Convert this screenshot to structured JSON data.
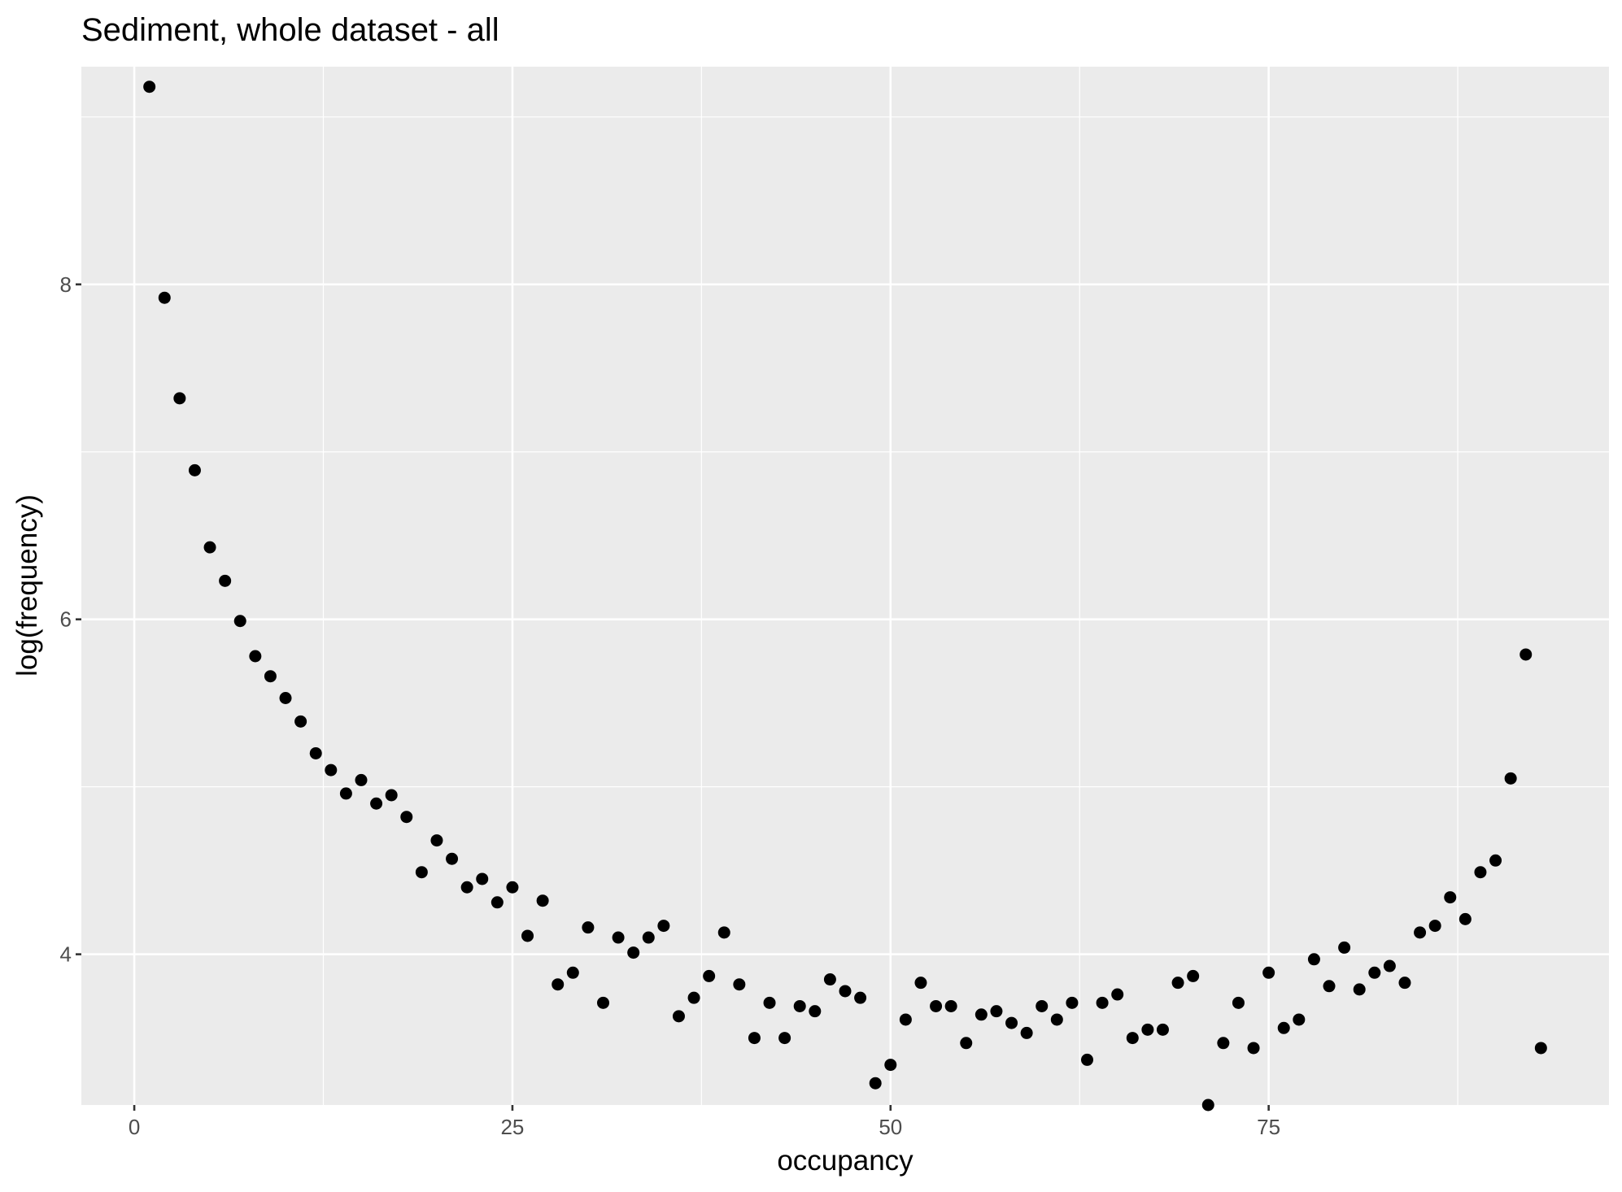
{
  "chart_data": {
    "type": "scatter",
    "title": "Sediment, whole dataset - all",
    "xlabel": "occupancy",
    "ylabel": "log(frequency)",
    "xlim": [
      -3.5,
      97.5
    ],
    "ylim": [
      3.1,
      9.3
    ],
    "xticks": [
      0,
      25,
      50,
      75
    ],
    "xtick_labels": [
      "0",
      "25",
      "50",
      "75"
    ],
    "yticks": [
      4,
      6,
      8
    ],
    "ytick_labels": [
      "4",
      "6",
      "8"
    ],
    "grid": true,
    "legend": "none",
    "colors": {
      "panel": "#ebebeb",
      "grid": "#ffffff",
      "point": "#000000",
      "tick_text": "#4d4d4d"
    },
    "x": [
      1,
      2,
      3,
      4,
      5,
      6,
      7,
      8,
      9,
      10,
      11,
      12,
      13,
      14,
      15,
      16,
      17,
      18,
      19,
      20,
      21,
      22,
      23,
      24,
      25,
      26,
      27,
      28,
      29,
      30,
      31,
      32,
      33,
      34,
      35,
      36,
      37,
      38,
      39,
      40,
      41,
      42,
      43,
      44,
      45,
      46,
      47,
      48,
      49,
      50,
      51,
      52,
      53,
      54,
      55,
      56,
      57,
      58,
      59,
      60,
      61,
      62,
      63,
      64,
      65,
      66,
      67,
      68,
      69,
      70,
      71,
      72,
      73,
      74,
      75,
      76,
      77,
      78,
      79,
      80,
      81,
      82,
      83,
      84,
      85,
      86,
      87,
      88,
      89,
      90,
      91,
      92,
      93
    ],
    "y": [
      9.18,
      7.92,
      7.32,
      6.89,
      6.43,
      6.23,
      5.99,
      5.78,
      5.66,
      5.53,
      5.39,
      5.2,
      5.1,
      4.96,
      5.04,
      4.9,
      4.95,
      4.82,
      4.49,
      4.68,
      4.57,
      4.4,
      4.45,
      4.31,
      4.4,
      4.11,
      4.32,
      3.82,
      3.89,
      4.16,
      3.71,
      4.1,
      4.01,
      4.1,
      4.17,
      3.63,
      3.74,
      3.87,
      4.13,
      3.82,
      3.5,
      3.71,
      3.5,
      3.69,
      3.66,
      3.85,
      3.78,
      3.74,
      3.23,
      3.34,
      3.61,
      3.83,
      3.69,
      3.69,
      3.47,
      3.64,
      3.66,
      3.59,
      3.53,
      3.69,
      3.61,
      3.71,
      3.37,
      3.71,
      3.76,
      3.5,
      3.55,
      3.55,
      3.83,
      3.87,
      3.1,
      3.47,
      3.71,
      3.44,
      3.89,
      3.56,
      3.61,
      3.97,
      3.81,
      4.04,
      3.79,
      3.89,
      3.93,
      3.83,
      4.13,
      4.17,
      4.34,
      4.21,
      4.49,
      4.56,
      5.05,
      5.79,
      3.44
    ]
  }
}
